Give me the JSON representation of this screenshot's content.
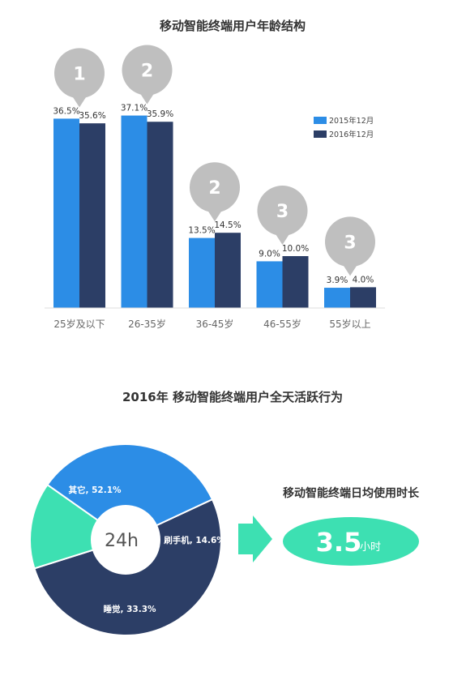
{
  "chart_data": [
    {
      "type": "bar",
      "title": "移动智能终端用户年龄结构",
      "categories": [
        "25岁及以下",
        "26-35岁",
        "36-45岁",
        "46-55岁",
        "55岁以上"
      ],
      "series": [
        {
          "name": "2015年12月",
          "color": "#2c8de6",
          "values": [
            36.5,
            37.1,
            13.5,
            9.0,
            3.9
          ],
          "labels": [
            "36.5%",
            "37.1%",
            "13.5%",
            "9.0%",
            "3.9%"
          ]
        },
        {
          "name": "2016年12月",
          "color": "#2c3e66",
          "values": [
            35.6,
            35.9,
            14.5,
            10.0,
            4.0
          ],
          "labels": [
            "35.6%",
            "35.9%",
            "14.5%",
            "10.0%",
            "4.0%"
          ]
        }
      ],
      "ranks": [
        "1",
        "2",
        "2",
        "3",
        "3"
      ],
      "ylim": [
        0,
        40
      ],
      "legend_position": "top-right",
      "grid": false
    },
    {
      "type": "pie",
      "title": "2016年 移动智能终端用户全天活跃行为",
      "center_label": "24h",
      "slices": [
        {
          "label": "其它, 52.1%",
          "value": 52.1,
          "color": "#2c3e66"
        },
        {
          "label": "刷手机, 14.6%",
          "value": 14.6,
          "color": "#3de0b2"
        },
        {
          "label": "睡觉, 33.3%",
          "value": 33.3,
          "color": "#2c8de6"
        }
      ]
    }
  ],
  "usage": {
    "title": "移动智能终端日均使用时长",
    "value": "3.5",
    "unit": "小时",
    "color": "#3de0b2"
  }
}
